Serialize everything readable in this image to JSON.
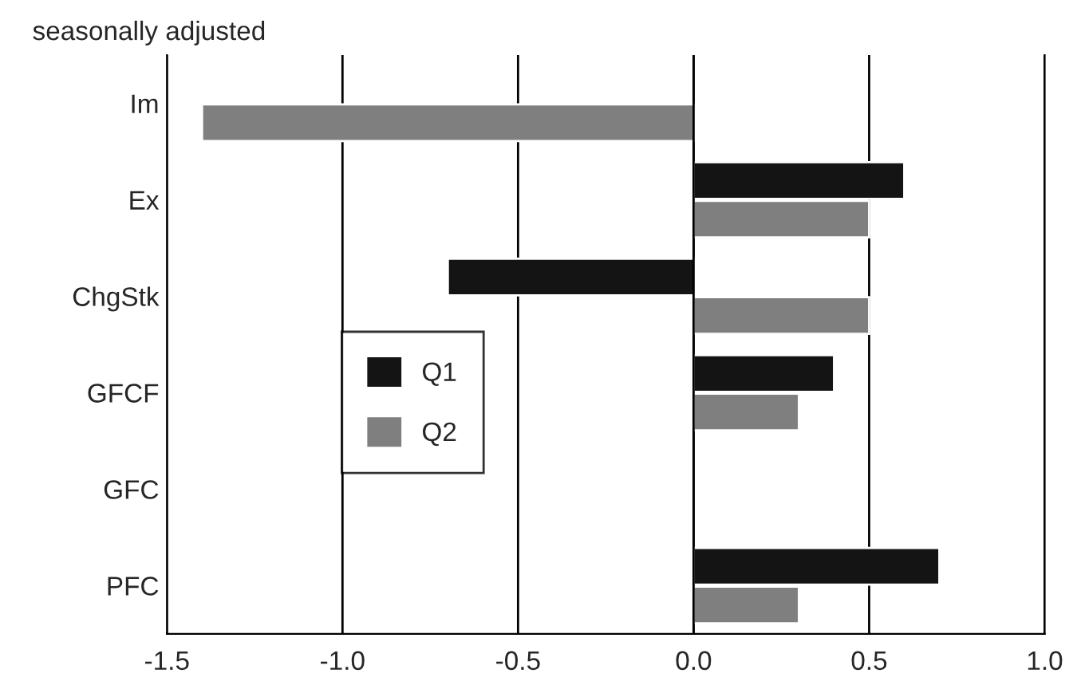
{
  "chart_data": {
    "type": "bar",
    "orientation": "horizontal",
    "title": "seasonally adjusted",
    "categories": [
      "Im",
      "Ex",
      "ChgStk",
      "GFCF",
      "GFC",
      "PFC"
    ],
    "series": [
      {
        "name": "Q1",
        "color": "#141414",
        "values": [
          null,
          0.6,
          -0.7,
          0.4,
          null,
          0.7
        ]
      },
      {
        "name": "Q2",
        "color": "#7f7f7f",
        "values": [
          -1.4,
          0.5,
          0.5,
          0.3,
          null,
          0.3
        ]
      }
    ],
    "xlim": [
      -1.5,
      1.0
    ],
    "xticks": [
      {
        "value": -1.5,
        "label": "-1.5"
      },
      {
        "value": -1.0,
        "label": "-1.0"
      },
      {
        "value": -0.5,
        "label": "-0.5"
      },
      {
        "value": 0.0,
        "label": "0.0"
      },
      {
        "value": 0.5,
        "label": "0.5"
      },
      {
        "value": 1.0,
        "label": "1.0"
      }
    ],
    "grid": "x",
    "legend": "bottom left"
  }
}
